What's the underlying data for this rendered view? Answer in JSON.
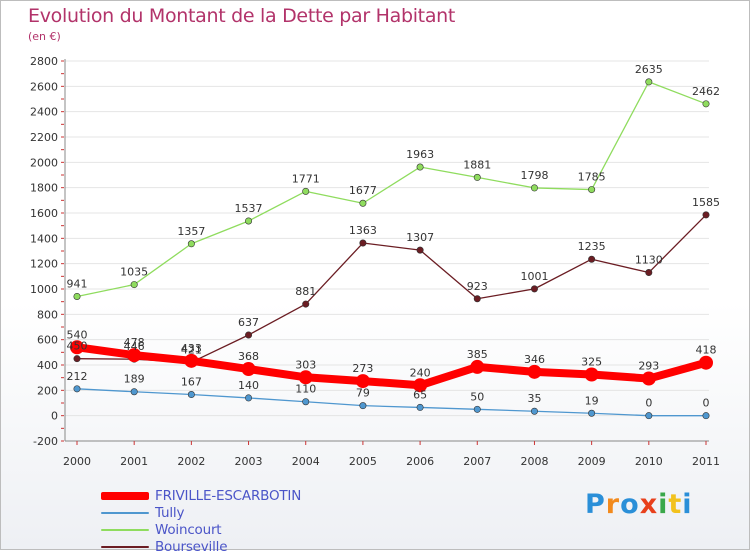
{
  "title": "Evolution du Montant de la Dette par Habitant",
  "unit_label": "(en €)",
  "logo_text": "Proxiti",
  "logo_colors": [
    "#2a8fd8",
    "#f28a1d",
    "#2a8fd8",
    "#e8401c",
    "#3aa84a",
    "#f2c21d",
    "#2a8fd8"
  ],
  "chart_data": {
    "type": "line",
    "x": [
      "2000",
      "2001",
      "2002",
      "2003",
      "2004",
      "2005",
      "2006",
      "2007",
      "2008",
      "2009",
      "2010",
      "2011"
    ],
    "ylim": [
      -200,
      2800
    ],
    "yticks": [
      "-200",
      "0",
      "200",
      "400",
      "600",
      "800",
      "1000",
      "1200",
      "1400",
      "1600",
      "1800",
      "2000",
      "2200",
      "2400",
      "2600",
      "2800"
    ],
    "grid": true,
    "legend_position": "bottom-left",
    "series": [
      {
        "name": "FRIVILLE-ESCARBOTIN",
        "color": "#ff0000",
        "values": [
          540,
          478,
          433,
          368,
          303,
          273,
          240,
          385,
          346,
          325,
          293,
          418
        ],
        "labels": [
          "540",
          "478",
          "433",
          "368",
          "303",
          "273",
          "240",
          "385",
          "346",
          "325",
          "293",
          "418"
        ]
      },
      {
        "name": "Tully",
        "color": "#4f97cf",
        "values": [
          212,
          189,
          167,
          140,
          110,
          79,
          65,
          50,
          35,
          19,
          0,
          0
        ],
        "labels": [
          "212",
          "189",
          "167",
          "140",
          "110",
          "79",
          "65",
          "50",
          "35",
          "19",
          "0",
          "0"
        ]
      },
      {
        "name": "Woincourt",
        "color": "#8fdc5e",
        "values": [
          941,
          1035,
          1357,
          1537,
          1771,
          1677,
          1963,
          1881,
          1798,
          1785,
          2635,
          2462
        ],
        "labels": [
          "941",
          "1035",
          "1357",
          "1537",
          "1771",
          "1677",
          "1963",
          "1881",
          "1798",
          "1785",
          "2635",
          "2462"
        ]
      },
      {
        "name": "Bourseville",
        "color": "#6b1d23",
        "values": [
          450,
          446,
          421,
          637,
          881,
          1363,
          1307,
          923,
          1001,
          1235,
          1130,
          1585
        ],
        "labels": [
          "450",
          "446",
          "421",
          "637",
          "881",
          "1363",
          "1307",
          "923",
          "1001",
          "1235",
          "1130",
          "1585"
        ]
      }
    ]
  }
}
